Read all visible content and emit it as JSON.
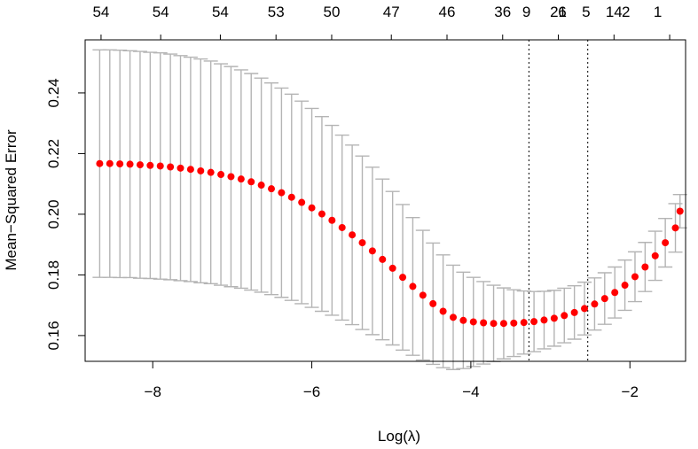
{
  "chart_data": {
    "type": "scatter",
    "title": "",
    "xlabel": "Log(λ)",
    "ylabel": "Mean−Squared Error",
    "xlim": [
      -8.85,
      -1.3
    ],
    "ylim": [
      0.1515,
      0.2575
    ],
    "x_ticks": [
      -8,
      -6,
      -4,
      -2
    ],
    "x_tick_labels": [
      "−8",
      "−6",
      "−4",
      "−2"
    ],
    "y_ticks": [
      0.16,
      0.18,
      0.2,
      0.22,
      0.24
    ],
    "y_tick_labels": [
      "0.16",
      "0.18",
      "0.20",
      "0.22",
      "0.24"
    ],
    "top_ticks": [
      -8.65,
      -7.9,
      -7.15,
      -6.45,
      -5.75,
      -5.0,
      -4.3,
      -3.6,
      -2.9,
      -2.2,
      -1.5
    ],
    "top_tick_labels": [
      "54",
      "54",
      "54",
      "53",
      "50",
      "47",
      "46",
      "36",
      "21",
      "14",
      "9",
      "6",
      "5",
      "2",
      "1"
    ],
    "top_label_x": [
      -8.65,
      -7.9,
      -7.15,
      -6.45,
      -5.75,
      -5.0,
      -4.3,
      -3.6,
      -2.9,
      -2.2,
      -3.3,
      -2.85,
      -2.55,
      -2.05,
      -1.65
    ],
    "vlines": [
      -3.27,
      -2.53
    ],
    "point_color": "#ff0000",
    "errorbar_color": "#b4b4b4",
    "grid": false,
    "legend": "none",
    "series": [
      {
        "x": [
          -8.667,
          -8.54,
          -8.413,
          -8.286,
          -8.159,
          -8.032,
          -7.905,
          -7.778,
          -7.651,
          -7.524,
          -7.397,
          -7.27,
          -7.143,
          -7.016,
          -6.889,
          -6.762,
          -6.635,
          -6.508,
          -6.381,
          -6.254,
          -6.127,
          -6.0,
          -5.873,
          -5.746,
          -5.619,
          -5.492,
          -5.365,
          -5.238,
          -5.111,
          -4.984,
          -4.857,
          -4.73,
          -4.603,
          -4.476,
          -4.349,
          -4.222,
          -4.095,
          -3.968,
          -3.841,
          -3.714,
          -3.587,
          -3.46,
          -3.333,
          -3.206,
          -3.079,
          -2.952,
          -2.825,
          -2.698,
          -2.571,
          -2.444,
          -2.317,
          -2.19,
          -2.063,
          -1.936,
          -1.809,
          -1.682,
          -1.555,
          -1.428,
          -1.37
        ],
        "y": [
          0.2167,
          0.2167,
          0.2166,
          0.2165,
          0.2163,
          0.2161,
          0.2159,
          0.2156,
          0.2152,
          0.2148,
          0.2143,
          0.2138,
          0.2131,
          0.2124,
          0.2116,
          0.2107,
          0.2096,
          0.2084,
          0.2071,
          0.2056,
          0.2039,
          0.2021,
          0.2001,
          0.198,
          0.1956,
          0.1932,
          0.1906,
          0.1879,
          0.1851,
          0.1822,
          0.1792,
          0.1762,
          0.1733,
          0.1705,
          0.168,
          0.166,
          0.165,
          0.1645,
          0.1642,
          0.164,
          0.164,
          0.1641,
          0.1643,
          0.1646,
          0.1651,
          0.1657,
          0.1666,
          0.1676,
          0.1689,
          0.1704,
          0.1722,
          0.1742,
          0.1766,
          0.1794,
          0.1826,
          0.1863,
          0.1906,
          0.1955,
          0.201
        ],
        "err": [
          0.0375,
          0.0375,
          0.0375,
          0.0374,
          0.0374,
          0.0373,
          0.0373,
          0.0372,
          0.0371,
          0.037,
          0.0369,
          0.0367,
          0.0365,
          0.0363,
          0.036,
          0.0357,
          0.0353,
          0.0349,
          0.0345,
          0.034,
          0.0334,
          0.0328,
          0.0321,
          0.0313,
          0.0305,
          0.0296,
          0.0286,
          0.0276,
          0.0265,
          0.0253,
          0.024,
          0.0227,
          0.0214,
          0.02,
          0.0186,
          0.0172,
          0.0159,
          0.0147,
          0.0136,
          0.0126,
          0.0117,
          0.011,
          0.0104,
          0.0099,
          0.0095,
          0.0092,
          0.009,
          0.0088,
          0.0087,
          0.0086,
          0.0085,
          0.0084,
          0.0083,
          0.0082,
          0.0081,
          0.0081,
          0.008,
          0.008,
          0.0055
        ]
      }
    ]
  }
}
